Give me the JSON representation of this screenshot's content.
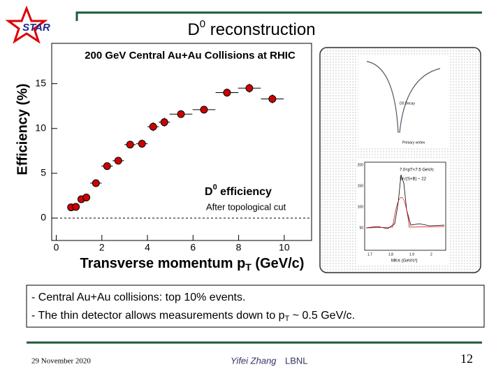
{
  "slide": {
    "logo": "STAR",
    "title": [
      "D",
      "0",
      " reconstruction"
    ],
    "bullets": [
      [
        "- Central Au+Au collisions: top 10% events."
      ],
      [
        "- The thin detector allows measurements down to p",
        "T",
        " ~ 0.5 GeV/c."
      ]
    ],
    "footer": {
      "date": "29 November 2020",
      "author": "Yifei Zhang",
      "org": "LBNL",
      "page": "12"
    },
    "inset": {
      "decay_label": "D0 Decay",
      "vertex_label": "Primary vertex",
      "bin_label": "7.0<pT<7.5 GeV/c",
      "signif_label": "S/√(S+B) ~ 22",
      "yticks": [
        "200",
        "150",
        "100",
        "50"
      ],
      "xticks": [
        "1.7",
        "1.8",
        "1.9",
        "2"
      ],
      "xlabel": "MKπ (GeV/c²)"
    }
  },
  "chart_data": {
    "type": "scatter",
    "title": "200 GeV Central Au+Au Collisions at RHIC",
    "ylabel": "Efficiency (%)",
    "xlabel": [
      "Transverse momentum p",
      "T",
      " (GeV/c)"
    ],
    "legend": [
      "D",
      "0",
      " efficiency"
    ],
    "annotation": "After topological cut",
    "color": "#d00000",
    "x": [
      0.65,
      0.86,
      1.1,
      1.32,
      1.74,
      2.23,
      2.72,
      3.24,
      3.76,
      4.25,
      4.74,
      5.47,
      6.48,
      7.49,
      8.47,
      9.48
    ],
    "values": [
      1.2,
      1.25,
      2.1,
      2.3,
      3.9,
      5.8,
      6.4,
      8.2,
      8.3,
      10.2,
      10.7,
      11.6,
      12.1,
      14.0,
      14.5,
      13.3
    ],
    "xerr": [
      0.1,
      0.1,
      0.1,
      0.1,
      0.25,
      0.25,
      0.25,
      0.25,
      0.25,
      0.25,
      0.25,
      0.5,
      0.5,
      0.5,
      0.5,
      0.5
    ],
    "yerr": [
      0.3,
      0.3,
      0.3,
      0.3,
      0.3,
      0.3,
      0.35,
      0.4,
      0.45,
      0.5,
      0.5,
      0.4,
      0.4,
      0.45,
      0.5,
      0.5
    ],
    "xlim": [
      -0.2,
      11.2
    ],
    "ylim": [
      -2.5,
      19.5
    ],
    "xticks": [
      0,
      2,
      4,
      6,
      8,
      10
    ],
    "yticks": [
      0,
      5,
      10,
      15
    ],
    "hline": 0
  }
}
